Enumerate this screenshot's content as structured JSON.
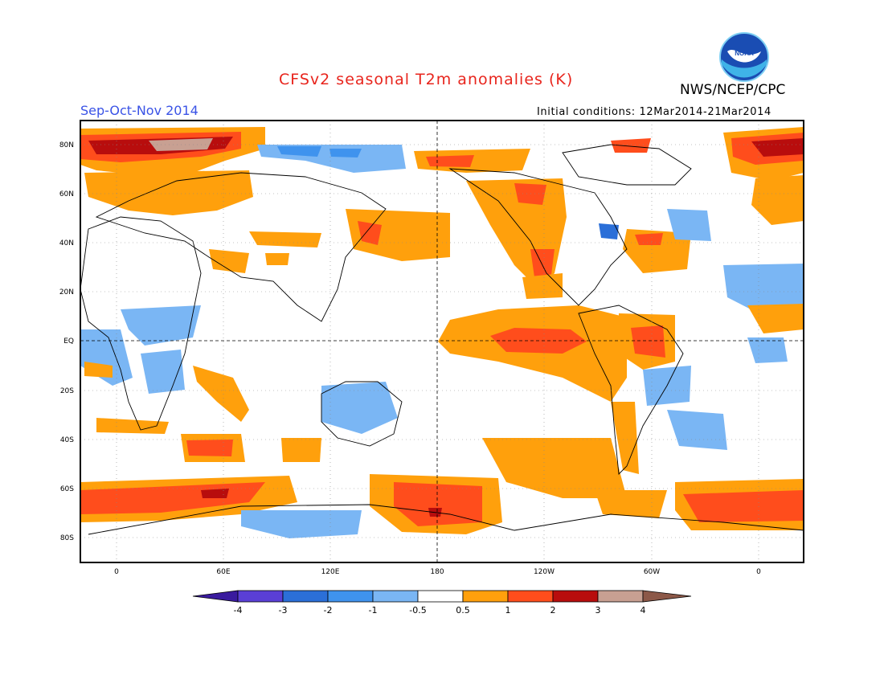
{
  "header": {
    "title": "CFSv2 seasonal T2m anomalies (K)",
    "season": "Sep-Oct-Nov 2014",
    "organization": "NWS/NCEP/CPC",
    "initial_conditions": "Initial conditions: 12Mar2014-21Mar2014",
    "logo_text": "NOAA"
  },
  "map": {
    "projection": "equirectangular, 0–360 centered on 180",
    "lat_labels": [
      "80N",
      "60N",
      "40N",
      "20N",
      "EQ",
      "20S",
      "40S",
      "60S",
      "80S"
    ],
    "lon_labels": [
      "0",
      "60E",
      "120E",
      "180",
      "120W",
      "60W",
      "0"
    ],
    "grid": true,
    "reference_lines": [
      "Equator",
      "180°"
    ]
  },
  "colorbar": {
    "ticks": [
      "-4",
      "-3",
      "-2",
      "-1",
      "-0.5",
      "0.5",
      "1",
      "2",
      "3",
      "4"
    ],
    "colors": [
      "#3a1b9e",
      "#5a3fd6",
      "#2b6fd8",
      "#3f93ee",
      "#7ab6f4",
      "#ffffff",
      "#ffa00c",
      "#ff4d1c",
      "#b80d0d",
      "#c8a092",
      "#8c5848"
    ]
  }
}
